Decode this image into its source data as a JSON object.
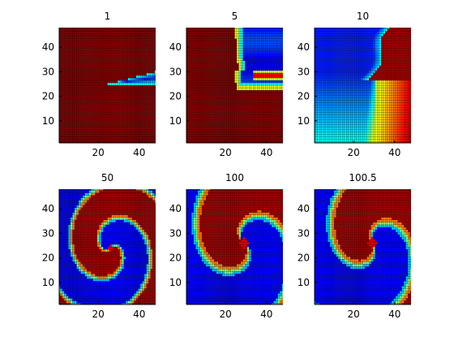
{
  "figure": {
    "background": "#ffffff"
  },
  "colormap": "jet",
  "colors": {
    "mesh_line": "#000000",
    "axes": "#000000",
    "text": "#000000"
  },
  "chart_data": [
    {
      "type": "heatmap",
      "title": "1",
      "xlim": [
        1,
        48
      ],
      "ylim": [
        1,
        48
      ],
      "xticks": [
        20,
        40
      ],
      "yticks": [
        10,
        20,
        30,
        40
      ],
      "grid": false,
      "pattern": "wedge",
      "description_params": {
        "wedge_tip_x": 25,
        "wedge_tip_y": 25,
        "wedge_top_y": 30,
        "wedge_bottom_y": 25
      }
    },
    {
      "type": "heatmap",
      "title": "5",
      "xlim": [
        1,
        48
      ],
      "ylim": [
        1,
        48
      ],
      "xticks": [
        20,
        40
      ],
      "yticks": [
        10,
        20,
        30,
        40
      ],
      "grid": false,
      "pattern": "broken-front"
    },
    {
      "type": "heatmap",
      "title": "10",
      "xlim": [
        1,
        48
      ],
      "ylim": [
        1,
        48
      ],
      "xticks": [
        20,
        40
      ],
      "yticks": [
        10,
        20,
        30,
        40
      ],
      "grid": false,
      "pattern": "diffusing-field"
    },
    {
      "type": "heatmap",
      "title": "50",
      "xlim": [
        1,
        48
      ],
      "ylim": [
        1,
        48
      ],
      "xticks": [
        20,
        40
      ],
      "yticks": [
        10,
        20,
        30,
        40
      ],
      "grid": false,
      "pattern": "spiral",
      "spiral": {
        "cx": 26,
        "cy": 24,
        "phase": 0.6,
        "scale": 0.55
      }
    },
    {
      "type": "heatmap",
      "title": "100",
      "xlim": [
        1,
        48
      ],
      "ylim": [
        1,
        48
      ],
      "xticks": [
        20,
        40
      ],
      "yticks": [
        10,
        20,
        30,
        40
      ],
      "grid": false,
      "pattern": "spiral",
      "spiral": {
        "cx": 29,
        "cy": 26,
        "phase": 2.1,
        "scale": 1.0
      }
    },
    {
      "type": "heatmap",
      "title": "100.5",
      "xlim": [
        1,
        48
      ],
      "ylim": [
        1,
        48
      ],
      "xticks": [
        20,
        40
      ],
      "yticks": [
        10,
        20,
        30,
        40
      ],
      "grid": false,
      "pattern": "spiral",
      "spiral": {
        "cx": 29,
        "cy": 26,
        "phase": 2.5,
        "scale": 1.0
      }
    }
  ]
}
